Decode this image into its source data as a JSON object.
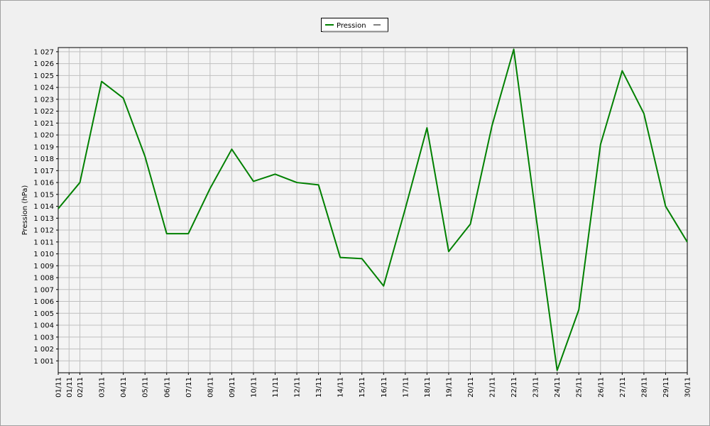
{
  "chart_data": {
    "type": "line",
    "y_label": "Pression (hPa)",
    "x": [
      1,
      2,
      3,
      4,
      5,
      6,
      7,
      8,
      9,
      10,
      11,
      12,
      13,
      14,
      15,
      16,
      17,
      18,
      19,
      20,
      21,
      22,
      23,
      24,
      25,
      26,
      27,
      28,
      29,
      30
    ],
    "series": [
      {
        "name": "Pression",
        "color": "#008000",
        "values": [
          1013.8,
          1016.0,
          1024.5,
          1023.1,
          1018.2,
          1011.7,
          1011.7,
          1015.5,
          1018.8,
          1016.1,
          1016.7,
          1016.0,
          1015.8,
          1009.7,
          1009.6,
          1007.3,
          1013.8,
          1020.6,
          1010.2,
          1012.5,
          1020.8,
          1027.2,
          1013.5,
          1000.2,
          1005.3,
          1019.2,
          1025.4,
          1021.8,
          1014.0,
          1011.0
        ]
      }
    ],
    "xlim": [
      1,
      30
    ],
    "xticks": [
      {
        "value": 1,
        "label": "01/11"
      },
      {
        "value": 1.5,
        "label": "01/11"
      },
      {
        "value": 2,
        "label": "02/11"
      },
      {
        "value": 3,
        "label": "03/11"
      },
      {
        "value": 4,
        "label": "04/11"
      },
      {
        "value": 5,
        "label": "05/11"
      },
      {
        "value": 6,
        "label": "06/11"
      },
      {
        "value": 7,
        "label": "07/11"
      },
      {
        "value": 8,
        "label": "08/11"
      },
      {
        "value": 9,
        "label": "09/11"
      },
      {
        "value": 10,
        "label": "10/11"
      },
      {
        "value": 11,
        "label": "11/11"
      },
      {
        "value": 12,
        "label": "12/11"
      },
      {
        "value": 13,
        "label": "13/11"
      },
      {
        "value": 14,
        "label": "14/11"
      },
      {
        "value": 15,
        "label": "15/11"
      },
      {
        "value": 16,
        "label": "16/11"
      },
      {
        "value": 17,
        "label": "17/11"
      },
      {
        "value": 18,
        "label": "18/11"
      },
      {
        "value": 19,
        "label": "19/11"
      },
      {
        "value": 20,
        "label": "20/11"
      },
      {
        "value": 21,
        "label": "21/11"
      },
      {
        "value": 22,
        "label": "22/11"
      },
      {
        "value": 23,
        "label": "23/11"
      },
      {
        "value": 24,
        "label": "24/11"
      },
      {
        "value": 25,
        "label": "25/11"
      },
      {
        "value": 26,
        "label": "26/11"
      },
      {
        "value": 27,
        "label": "27/11"
      },
      {
        "value": 28,
        "label": "28/11"
      },
      {
        "value": 29,
        "label": "29/11"
      },
      {
        "value": 30,
        "label": "30/11"
      }
    ],
    "ylim": [
      1000,
      1027.35
    ],
    "yticks": [
      {
        "value": 1001,
        "label": "1 001"
      },
      {
        "value": 1002,
        "label": "1 002"
      },
      {
        "value": 1003,
        "label": "1 003"
      },
      {
        "value": 1004,
        "label": "1 004"
      },
      {
        "value": 1005,
        "label": "1 005"
      },
      {
        "value": 1006,
        "label": "1 006"
      },
      {
        "value": 1007,
        "label": "1 007"
      },
      {
        "value": 1008,
        "label": "1 008"
      },
      {
        "value": 1009,
        "label": "1 009"
      },
      {
        "value": 1010,
        "label": "1 010"
      },
      {
        "value": 1011,
        "label": "1 011"
      },
      {
        "value": 1012,
        "label": "1 012"
      },
      {
        "value": 1013,
        "label": "1 013"
      },
      {
        "value": 1014,
        "label": "1 014"
      },
      {
        "value": 1015,
        "label": "1 015"
      },
      {
        "value": 1016,
        "label": "1 016"
      },
      {
        "value": 1017,
        "label": "1 017"
      },
      {
        "value": 1018,
        "label": "1 018"
      },
      {
        "value": 1019,
        "label": "1 019"
      },
      {
        "value": 1020,
        "label": "1 020"
      },
      {
        "value": 1021,
        "label": "1 021"
      },
      {
        "value": 1022,
        "label": "1 022"
      },
      {
        "value": 1023,
        "label": "1 023"
      },
      {
        "value": 1024,
        "label": "1 024"
      },
      {
        "value": 1025,
        "label": "1 025"
      },
      {
        "value": 1026,
        "label": "1 026"
      },
      {
        "value": 1027,
        "label": "1 027"
      }
    ],
    "grid": true
  }
}
